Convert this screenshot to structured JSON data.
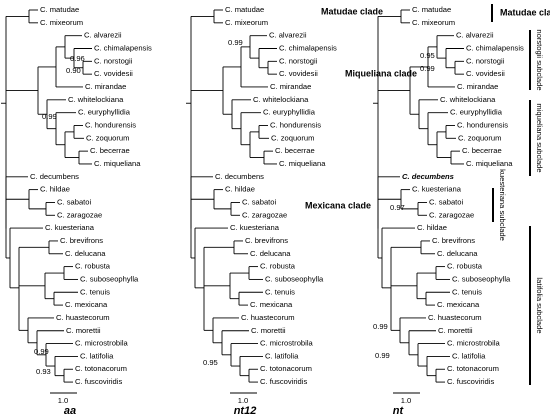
{
  "panels": [
    {
      "title": "aa",
      "scale": "1.0",
      "taxa": [
        "C. matudae",
        "C. mixeorum",
        "C. alvarezii",
        "C. chimalapensis",
        "C. norstogii",
        "C. vovidesii",
        "C. mirandae",
        "C. whitelockiana",
        "C. euryphyllidia",
        "C. hondurensis",
        "C. zoquorum",
        "C. becerrae",
        "C. miqueliana",
        "C. decumbens",
        "C. hildae",
        "C. sabatoi",
        "C. zaragozae",
        "C. kuesteriana",
        "C. brevifrons",
        "C. delucana",
        "C. robusta",
        "C. suboseophylla",
        "C. tenuis",
        "C. mexicana",
        "C. huastecorum",
        "C. morettii",
        "C. microstrobila",
        "C. latifolia",
        "C. totonacorum",
        "C. fuscoviridis"
      ],
      "support": [
        "0.96",
        "0.90",
        "0.99",
        "0.99",
        "0.93"
      ]
    },
    {
      "title": "nt12",
      "scale": "1.0",
      "taxa": [
        "C. matudae",
        "C. mixeorum",
        "C. alvarezii",
        "C. chimalapensis",
        "C. norstogii",
        "C. vovidesii",
        "C. mirandae",
        "C. whitelockiana",
        "C. euryphyllidia",
        "C. hondurensis",
        "C. zoquorum",
        "C. becerrae",
        "C. miqueliana",
        "C. decumbens",
        "C. hildae",
        "C. sabatoi",
        "C. zaragozae",
        "C. kuesteriana",
        "C. brevifrons",
        "C. delucana",
        "C. robusta",
        "C. suboseophylla",
        "C. tenuis",
        "C. mexicana",
        "C. huastecorum",
        "C. morettii",
        "C. microstrobila",
        "C. latifolia",
        "C. totonacorum",
        "C. fuscoviridis"
      ],
      "support": [
        "0.99",
        "0.95"
      ]
    },
    {
      "title": "nt",
      "scale": "1.0",
      "taxa": [
        "C. matudae",
        "C. mixeorum",
        "C. alvarezii",
        "C. chimalapensis",
        "C. norstogii",
        "C. vovidesii",
        "C. mirandae",
        "C. whitelockiana",
        "C. euryphyllidia",
        "C. hondurensis",
        "C. zoquorum",
        "C. becerrae",
        "C. miqueliana",
        "C. decumbens",
        "C. kuesteriana",
        "C. sabatoi",
        "C. zaragozae",
        "C. hildae",
        "C. brevifrons",
        "C. delucana",
        "C. robusta",
        "C. suboseophylla",
        "C. tenuis",
        "C. mexicana",
        "C. huastecorum",
        "C. morettii",
        "C. microstrobila",
        "C. latifolia",
        "C. totonacorum",
        "C. fuscoviridis"
      ],
      "support": [
        "0.95",
        "0.99",
        "0.97",
        "0.99",
        "0.99"
      ]
    }
  ],
  "clades": [
    "Matudae clade",
    "Miqueliana clade",
    "Mexicana clade"
  ],
  "side_labels": [
    "Matudae clade",
    "norstogii subclade",
    "miqueliana subclade",
    "kuesteriana subclade",
    "latifolia subclade"
  ]
}
